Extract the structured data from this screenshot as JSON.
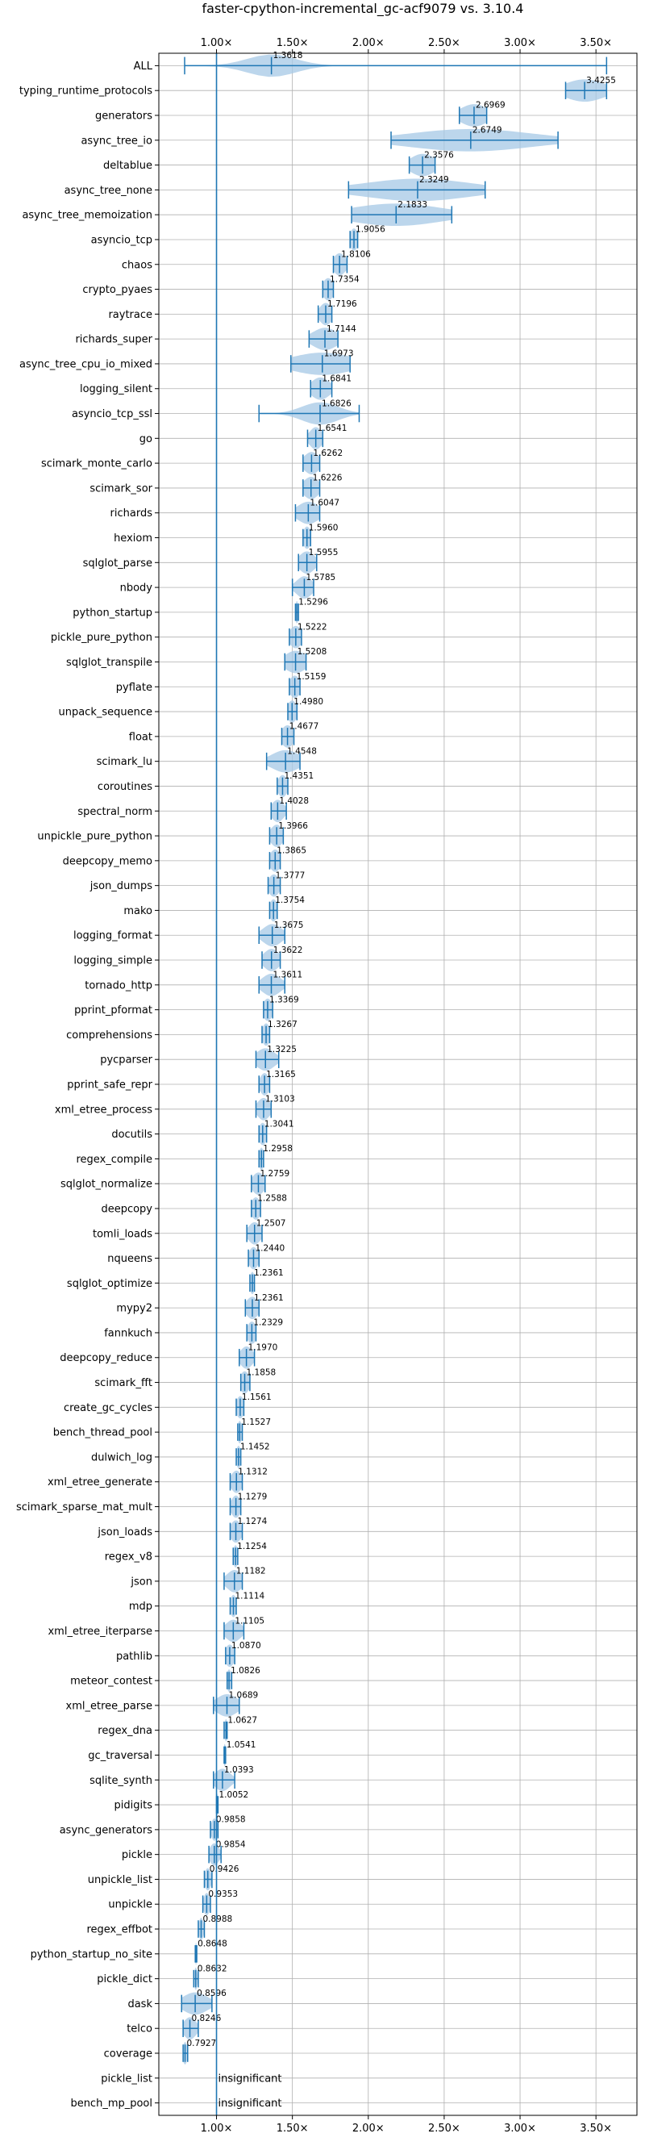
{
  "chart_data": {
    "type": "violin",
    "title": "faster-cpython-incremental_gc-acf9079 vs. 3.10.4",
    "xlabel": "",
    "ylabel": "",
    "xlim": [
      0.62,
      3.77
    ],
    "x_ticks": [
      1.0,
      1.5,
      2.0,
      2.5,
      3.0,
      3.5
    ],
    "x_tick_labels": [
      "1.00×",
      "1.50×",
      "2.00×",
      "2.50×",
      "3.00×",
      "3.50×"
    ],
    "reference_line": 1.0,
    "grid": true,
    "colors": {
      "violin_fill": "#a6c8e6",
      "line": "#1f77b4",
      "grid": "#b0b0b0"
    },
    "insignificant_label": "insignificant",
    "benchmarks": [
      {
        "name": "ALL",
        "label": "1.3618",
        "mean": 1.3618,
        "min": 0.79,
        "max": 3.57,
        "spread": 0.16
      },
      {
        "name": "typing_runtime_protocols",
        "label": "3.4255",
        "mean": 3.4255,
        "min": 3.3,
        "max": 3.57,
        "spread": 0.13
      },
      {
        "name": "generators",
        "label": "2.6969",
        "mean": 2.6969,
        "min": 2.6,
        "max": 2.78,
        "spread": 0.09
      },
      {
        "name": "async_tree_io",
        "label": "2.6749",
        "mean": 2.6749,
        "min": 2.15,
        "max": 3.25,
        "spread": 0.4
      },
      {
        "name": "deltablue",
        "label": "2.3576",
        "mean": 2.3576,
        "min": 2.27,
        "max": 2.44,
        "spread": 0.08
      },
      {
        "name": "async_tree_none",
        "label": "2.3249",
        "mean": 2.3249,
        "min": 1.87,
        "max": 2.77,
        "spread": 0.35
      },
      {
        "name": "async_tree_memoization",
        "label": "2.1833",
        "mean": 2.1833,
        "min": 1.89,
        "max": 2.55,
        "spread": 0.3
      },
      {
        "name": "asyncio_tcp",
        "label": "1.9056",
        "mean": 1.9056,
        "min": 1.88,
        "max": 1.93,
        "spread": 0.025
      },
      {
        "name": "chaos",
        "label": "1.8106",
        "mean": 1.8106,
        "min": 1.77,
        "max": 1.86,
        "spread": 0.04
      },
      {
        "name": "crypto_pyaes",
        "label": "1.7354",
        "mean": 1.7354,
        "min": 1.7,
        "max": 1.77,
        "spread": 0.035
      },
      {
        "name": "raytrace",
        "label": "1.7196",
        "mean": 1.7196,
        "min": 1.67,
        "max": 1.76,
        "spread": 0.04
      },
      {
        "name": "richards_super",
        "label": "1.7144",
        "mean": 1.7144,
        "min": 1.61,
        "max": 1.8,
        "spread": 0.08
      },
      {
        "name": "async_tree_cpu_io_mixed",
        "label": "1.6973",
        "mean": 1.6973,
        "min": 1.49,
        "max": 1.88,
        "spread": 0.2
      },
      {
        "name": "logging_silent",
        "label": "1.6841",
        "mean": 1.6841,
        "min": 1.62,
        "max": 1.76,
        "spread": 0.06
      },
      {
        "name": "asyncio_tcp_ssl",
        "label": "1.6826",
        "mean": 1.6826,
        "min": 1.28,
        "max": 1.94,
        "spread": 0.12
      },
      {
        "name": "go",
        "label": "1.6541",
        "mean": 1.6541,
        "min": 1.6,
        "max": 1.7,
        "spread": 0.04
      },
      {
        "name": "scimark_monte_carlo",
        "label": "1.6262",
        "mean": 1.6262,
        "min": 1.57,
        "max": 1.68,
        "spread": 0.05
      },
      {
        "name": "scimark_sor",
        "label": "1.6226",
        "mean": 1.6226,
        "min": 1.57,
        "max": 1.68,
        "spread": 0.05
      },
      {
        "name": "richards",
        "label": "1.6047",
        "mean": 1.6047,
        "min": 1.52,
        "max": 1.68,
        "spread": 0.07
      },
      {
        "name": "hexiom",
        "label": "1.5960",
        "mean": 1.596,
        "min": 1.57,
        "max": 1.62,
        "spread": 0.025
      },
      {
        "name": "sqlglot_parse",
        "label": "1.5955",
        "mean": 1.5955,
        "min": 1.54,
        "max": 1.66,
        "spread": 0.05
      },
      {
        "name": "nbody",
        "label": "1.5785",
        "mean": 1.5785,
        "min": 1.5,
        "max": 1.64,
        "spread": 0.05
      },
      {
        "name": "python_startup",
        "label": "1.5296",
        "mean": 1.5296,
        "min": 1.52,
        "max": 1.54,
        "spread": 0.01
      },
      {
        "name": "pickle_pure_python",
        "label": "1.5222",
        "mean": 1.5222,
        "min": 1.48,
        "max": 1.56,
        "spread": 0.04
      },
      {
        "name": "sqlglot_transpile",
        "label": "1.5208",
        "mean": 1.5208,
        "min": 1.45,
        "max": 1.59,
        "spread": 0.07
      },
      {
        "name": "pyflate",
        "label": "1.5159",
        "mean": 1.5159,
        "min": 1.48,
        "max": 1.55,
        "spread": 0.035
      },
      {
        "name": "unpack_sequence",
        "label": "1.4980",
        "mean": 1.498,
        "min": 1.47,
        "max": 1.53,
        "spread": 0.03
      },
      {
        "name": "float",
        "label": "1.4677",
        "mean": 1.4677,
        "min": 1.43,
        "max": 1.51,
        "spread": 0.04
      },
      {
        "name": "scimark_lu",
        "label": "1.4548",
        "mean": 1.4548,
        "min": 1.33,
        "max": 1.55,
        "spread": 0.09
      },
      {
        "name": "coroutines",
        "label": "1.4351",
        "mean": 1.4351,
        "min": 1.4,
        "max": 1.47,
        "spread": 0.03
      },
      {
        "name": "spectral_norm",
        "label": "1.4028",
        "mean": 1.4028,
        "min": 1.36,
        "max": 1.46,
        "spread": 0.04
      },
      {
        "name": "unpickle_pure_python",
        "label": "1.3966",
        "mean": 1.3966,
        "min": 1.35,
        "max": 1.44,
        "spread": 0.04
      },
      {
        "name": "deepcopy_memo",
        "label": "1.3865",
        "mean": 1.3865,
        "min": 1.35,
        "max": 1.42,
        "spread": 0.035
      },
      {
        "name": "json_dumps",
        "label": "1.3777",
        "mean": 1.3777,
        "min": 1.34,
        "max": 1.42,
        "spread": 0.035
      },
      {
        "name": "mako",
        "label": "1.3754",
        "mean": 1.3754,
        "min": 1.35,
        "max": 1.4,
        "spread": 0.025
      },
      {
        "name": "logging_format",
        "label": "1.3675",
        "mean": 1.3675,
        "min": 1.28,
        "max": 1.45,
        "spread": 0.06
      },
      {
        "name": "logging_simple",
        "label": "1.3622",
        "mean": 1.3622,
        "min": 1.3,
        "max": 1.42,
        "spread": 0.05
      },
      {
        "name": "tornado_http",
        "label": "1.3611",
        "mean": 1.3611,
        "min": 1.28,
        "max": 1.45,
        "spread": 0.06
      },
      {
        "name": "pprint_pformat",
        "label": "1.3369",
        "mean": 1.3369,
        "min": 1.31,
        "max": 1.37,
        "spread": 0.03
      },
      {
        "name": "comprehensions",
        "label": "1.3267",
        "mean": 1.3267,
        "min": 1.3,
        "max": 1.35,
        "spread": 0.025
      },
      {
        "name": "pycparser",
        "label": "1.3225",
        "mean": 1.3225,
        "min": 1.26,
        "max": 1.41,
        "spread": 0.06
      },
      {
        "name": "pprint_safe_repr",
        "label": "1.3165",
        "mean": 1.3165,
        "min": 1.28,
        "max": 1.35,
        "spread": 0.03
      },
      {
        "name": "xml_etree_process",
        "label": "1.3103",
        "mean": 1.3103,
        "min": 1.26,
        "max": 1.36,
        "spread": 0.04
      },
      {
        "name": "docutils",
        "label": "1.3041",
        "mean": 1.3041,
        "min": 1.28,
        "max": 1.33,
        "spread": 0.025
      },
      {
        "name": "regex_compile",
        "label": "1.2958",
        "mean": 1.2958,
        "min": 1.28,
        "max": 1.31,
        "spread": 0.015
      },
      {
        "name": "sqlglot_normalize",
        "label": "1.2759",
        "mean": 1.2759,
        "min": 1.23,
        "max": 1.32,
        "spread": 0.04
      },
      {
        "name": "deepcopy",
        "label": "1.2588",
        "mean": 1.2588,
        "min": 1.23,
        "max": 1.29,
        "spread": 0.03
      },
      {
        "name": "tomli_loads",
        "label": "1.2507",
        "mean": 1.2507,
        "min": 1.2,
        "max": 1.3,
        "spread": 0.04
      },
      {
        "name": "nqueens",
        "label": "1.2440",
        "mean": 1.244,
        "min": 1.21,
        "max": 1.28,
        "spread": 0.03
      },
      {
        "name": "sqlglot_optimize",
        "label": "1.2361",
        "mean": 1.2361,
        "min": 1.22,
        "max": 1.25,
        "spread": 0.015
      },
      {
        "name": "mypy2",
        "label": "1.2361",
        "mean": 1.2361,
        "min": 1.19,
        "max": 1.28,
        "spread": 0.04
      },
      {
        "name": "fannkuch",
        "label": "1.2329",
        "mean": 1.2329,
        "min": 1.2,
        "max": 1.26,
        "spread": 0.03
      },
      {
        "name": "deepcopy_reduce",
        "label": "1.1970",
        "mean": 1.197,
        "min": 1.15,
        "max": 1.25,
        "spread": 0.04
      },
      {
        "name": "scimark_fft",
        "label": "1.1858",
        "mean": 1.1858,
        "min": 1.16,
        "max": 1.22,
        "spread": 0.03
      },
      {
        "name": "create_gc_cycles",
        "label": "1.1561",
        "mean": 1.1561,
        "min": 1.13,
        "max": 1.18,
        "spread": 0.025
      },
      {
        "name": "bench_thread_pool",
        "label": "1.1527",
        "mean": 1.1527,
        "min": 1.14,
        "max": 1.17,
        "spread": 0.015
      },
      {
        "name": "dulwich_log",
        "label": "1.1452",
        "mean": 1.1452,
        "min": 1.13,
        "max": 1.16,
        "spread": 0.015
      },
      {
        "name": "xml_etree_generate",
        "label": "1.1312",
        "mean": 1.1312,
        "min": 1.09,
        "max": 1.17,
        "spread": 0.035
      },
      {
        "name": "scimark_sparse_mat_mult",
        "label": "1.1279",
        "mean": 1.1279,
        "min": 1.09,
        "max": 1.16,
        "spread": 0.03
      },
      {
        "name": "json_loads",
        "label": "1.1274",
        "mean": 1.1274,
        "min": 1.09,
        "max": 1.17,
        "spread": 0.035
      },
      {
        "name": "regex_v8",
        "label": "1.1254",
        "mean": 1.1254,
        "min": 1.11,
        "max": 1.14,
        "spread": 0.015
      },
      {
        "name": "json",
        "label": "1.1182",
        "mean": 1.1182,
        "min": 1.05,
        "max": 1.17,
        "spread": 0.05
      },
      {
        "name": "mdp",
        "label": "1.1114",
        "mean": 1.1114,
        "min": 1.09,
        "max": 1.13,
        "spread": 0.02
      },
      {
        "name": "xml_etree_iterparse",
        "label": "1.1105",
        "mean": 1.1105,
        "min": 1.05,
        "max": 1.18,
        "spread": 0.05
      },
      {
        "name": "pathlib",
        "label": "1.0870",
        "mean": 1.087,
        "min": 1.06,
        "max": 1.12,
        "spread": 0.03
      },
      {
        "name": "meteor_contest",
        "label": "1.0826",
        "mean": 1.0826,
        "min": 1.07,
        "max": 1.1,
        "spread": 0.015
      },
      {
        "name": "xml_etree_parse",
        "label": "1.0689",
        "mean": 1.0689,
        "min": 0.98,
        "max": 1.15,
        "spread": 0.07
      },
      {
        "name": "regex_dna",
        "label": "1.0627",
        "mean": 1.0627,
        "min": 1.05,
        "max": 1.07,
        "spread": 0.01
      },
      {
        "name": "gc_traversal",
        "label": "1.0541",
        "mean": 1.0541,
        "min": 1.05,
        "max": 1.06,
        "spread": 0.008
      },
      {
        "name": "sqlite_synth",
        "label": "1.0393",
        "mean": 1.0393,
        "min": 0.98,
        "max": 1.12,
        "spread": 0.05
      },
      {
        "name": "pidigits",
        "label": "1.0052",
        "mean": 1.0052,
        "min": 1.0,
        "max": 1.01,
        "spread": 0.005
      },
      {
        "name": "async_generators",
        "label": "0.9858",
        "mean": 0.9858,
        "min": 0.96,
        "max": 1.01,
        "spread": 0.02
      },
      {
        "name": "pickle",
        "label": "0.9854",
        "mean": 0.9854,
        "min": 0.95,
        "max": 1.03,
        "spread": 0.03
      },
      {
        "name": "unpickle_list",
        "label": "0.9426",
        "mean": 0.9426,
        "min": 0.92,
        "max": 0.97,
        "spread": 0.02
      },
      {
        "name": "unpickle",
        "label": "0.9353",
        "mean": 0.9353,
        "min": 0.91,
        "max": 0.96,
        "spread": 0.02
      },
      {
        "name": "regex_effbot",
        "label": "0.8988",
        "mean": 0.8988,
        "min": 0.88,
        "max": 0.92,
        "spread": 0.015
      },
      {
        "name": "python_startup_no_site",
        "label": "0.8648",
        "mean": 0.8648,
        "min": 0.86,
        "max": 0.87,
        "spread": 0.005
      },
      {
        "name": "pickle_dict",
        "label": "0.8632",
        "mean": 0.8632,
        "min": 0.85,
        "max": 0.88,
        "spread": 0.01
      },
      {
        "name": "dask",
        "label": "0.8596",
        "mean": 0.8596,
        "min": 0.77,
        "max": 0.97,
        "spread": 0.08
      },
      {
        "name": "telco",
        "label": "0.8246",
        "mean": 0.8246,
        "min": 0.78,
        "max": 0.88,
        "spread": 0.04
      },
      {
        "name": "coverage",
        "label": "0.7927",
        "mean": 0.7927,
        "min": 0.78,
        "max": 0.81,
        "spread": 0.015
      },
      {
        "name": "pickle_list",
        "label": "",
        "mean": null,
        "insignificant": true
      },
      {
        "name": "bench_mp_pool",
        "label": "",
        "mean": null,
        "insignificant": true
      }
    ]
  }
}
